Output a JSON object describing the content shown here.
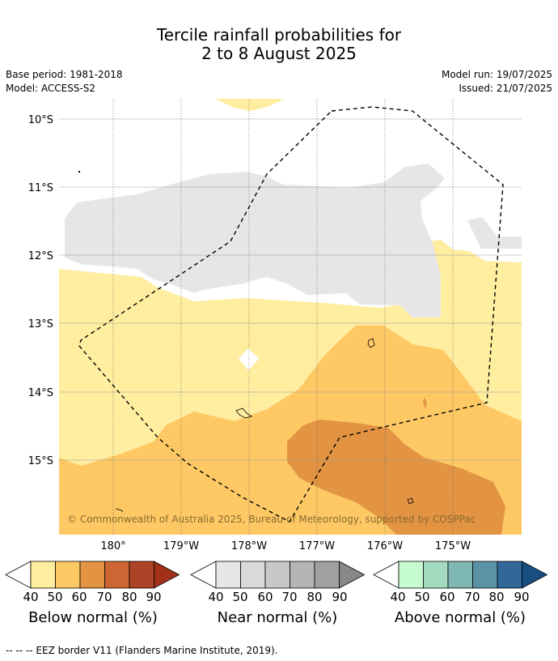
{
  "title_line1": "Tercile rainfall probabilities for",
  "title_line2": "2 to 8 August 2025",
  "base_period": "Base period: 1981-2018",
  "model": "Model: ACCESS-S2",
  "model_run": "Model run: 19/07/2025",
  "issued": "Issued: 21/07/2025",
  "lat_labels": [
    "10°S",
    "11°S",
    "12°S",
    "13°S",
    "14°S",
    "15°S"
  ],
  "lon_labels": [
    "180°",
    "179°W",
    "178°W",
    "177°W",
    "176°W",
    "175°W"
  ],
  "copyright": "© Commonwealth of Australia 2025, Bureau of Meteorology, supported by COSPPac",
  "colorbars": [
    {
      "title": "Below normal (%)",
      "ticks": [
        "40",
        "50",
        "60",
        "70",
        "80",
        "90"
      ],
      "colors": [
        "#ffeda0",
        "#fec965",
        "#e29443",
        "#cd6632",
        "#ae4427",
        "#a23018"
      ]
    },
    {
      "title": "Near normal (%)",
      "ticks": [
        "40",
        "50",
        "60",
        "70",
        "80",
        "90"
      ],
      "colors": [
        "#e6e6e6",
        "#d9d9d9",
        "#c8c8c8",
        "#b4b4b4",
        "#a0a0a0",
        "#888888"
      ]
    },
    {
      "title": "Above normal (%)",
      "ticks": [
        "40",
        "50",
        "60",
        "70",
        "80",
        "90"
      ],
      "colors": [
        "#c7fcd0",
        "#a2dbbf",
        "#7fb7b4",
        "#5a93a6",
        "#32679a",
        "#184f80"
      ]
    }
  ],
  "footer": "--  --  -- EEZ border V11 (Flanders Marine Institute, 2019)."
}
